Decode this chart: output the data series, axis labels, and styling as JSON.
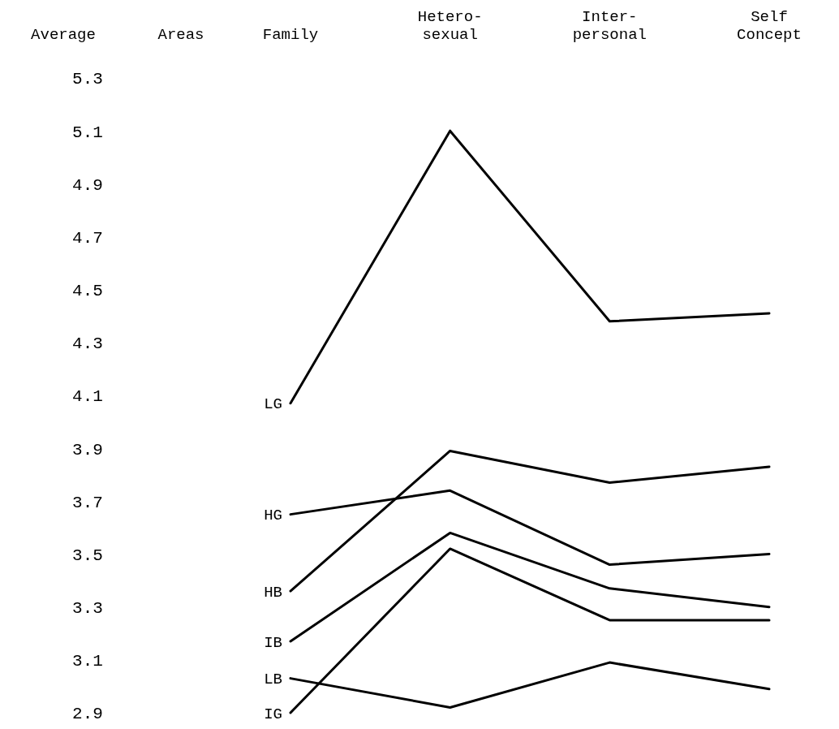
{
  "chart_data": {
    "type": "line",
    "ylabel": "Average",
    "legend_title": "Areas",
    "legend": "left",
    "categories": [
      "Family",
      "Hetero-\nsexual",
      "Inter-\npersonal",
      "Self\nConcept"
    ],
    "ylim": [
      2.9,
      5.3
    ],
    "yticks": [
      5.3,
      5.1,
      4.9,
      4.7,
      4.5,
      4.3,
      4.1,
      3.9,
      3.7,
      3.5,
      3.3,
      3.1,
      2.9
    ],
    "grid": false,
    "marker": "none",
    "line_style": "solid",
    "series": [
      {
        "name": "LG",
        "color": "#000000",
        "values": [
          4.07,
          5.1,
          4.38,
          4.41
        ]
      },
      {
        "name": "HG",
        "color": "#000000",
        "values": [
          3.65,
          3.74,
          3.46,
          3.5
        ]
      },
      {
        "name": "HB",
        "color": "#000000",
        "values": [
          3.36,
          3.89,
          3.77,
          3.83
        ]
      },
      {
        "name": "IB",
        "color": "#000000",
        "values": [
          3.17,
          3.58,
          3.37,
          3.3
        ]
      },
      {
        "name": "LB",
        "color": "#000000",
        "values": [
          3.03,
          2.92,
          3.09,
          2.99
        ]
      },
      {
        "name": "IG",
        "color": "#000000",
        "values": [
          2.9,
          3.52,
          3.25,
          3.25
        ]
      }
    ]
  }
}
